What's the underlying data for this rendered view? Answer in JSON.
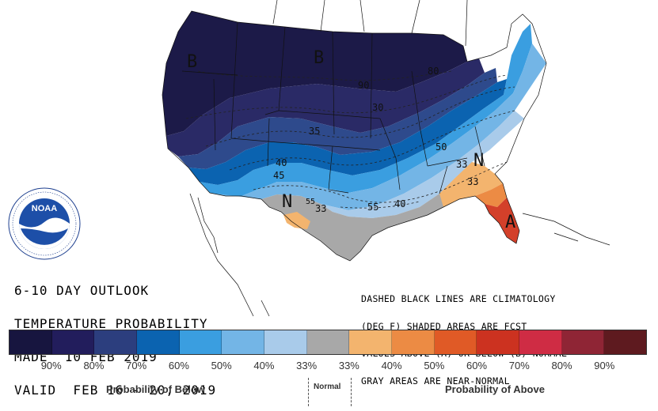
{
  "outlook": {
    "line1": "6-10 DAY OUTLOOK",
    "line2": "TEMPERATURE PROBABILITY",
    "line3": "MADE  10 FEB 2019",
    "line4": "VALID  FEB 16 - 20, 2019"
  },
  "notes": {
    "line1": "DASHED BLACK LINES ARE CLIMATOLOGY",
    "line2": "(DEG F) SHADED AREAS ARE FCST",
    "line3": "VALUES ABOVE (A) OR BELOW (B) NORMAL",
    "line4": "GRAY AREAS ARE NEAR-NORMAL"
  },
  "map_labels": {
    "b_west": "B",
    "b_north": "B",
    "n_texas": "N",
    "n_carolina": "N",
    "a_florida": "A",
    "contour_90": "90",
    "contour_80": "80",
    "contour_30_mid": "30",
    "contour_35": "35",
    "contour_40_west": "40",
    "contour_45": "45",
    "contour_50_east": "50",
    "contour_33_texas": "33",
    "contour_55_texas": "55",
    "contour_55_south": "55",
    "contour_40_south": "40",
    "contour_33_carolina": "33",
    "contour_33_georgia": "33"
  },
  "legend": {
    "colors": [
      "#17153f",
      "#221d5c",
      "#2c3e7e",
      "#0b63b0",
      "#3a9ee0",
      "#73b5e6",
      "#a9cbea",
      "#a8a8a8",
      "#f3b46e",
      "#ec8b44",
      "#e05a26",
      "#cc3220",
      "#cf2c44",
      "#8f2535",
      "#5e1a1f"
    ],
    "percentages_below": [
      "90%",
      "80%",
      "70%",
      "60%",
      "50%",
      "40%",
      "33%"
    ],
    "percentages_above": [
      "33%",
      "40%",
      "50%",
      "60%",
      "70%",
      "80%",
      "90%"
    ],
    "below_label": "Probability of Below",
    "normal_label": "Normal",
    "above_label": "Probability of Above"
  },
  "logo": {
    "text": "NOAA",
    "ring_text": "NATIONAL OCEANIC AND ATMOSPHERIC ADMINISTRATION · U.S. DEPARTMENT OF COMMERCE"
  },
  "colors": {
    "below_90": "#1c1a48",
    "below_80": "#2a2a66",
    "below_70": "#2e4a8c",
    "below_60": "#0b63b0",
    "below_50": "#3a9ee0",
    "below_40": "#73b5e6",
    "below_33": "#a9cbea",
    "normal": "#a8a8a8",
    "above_33": "#f3b46e",
    "above_40": "#ec8b44",
    "above_60": "#d3402a"
  }
}
